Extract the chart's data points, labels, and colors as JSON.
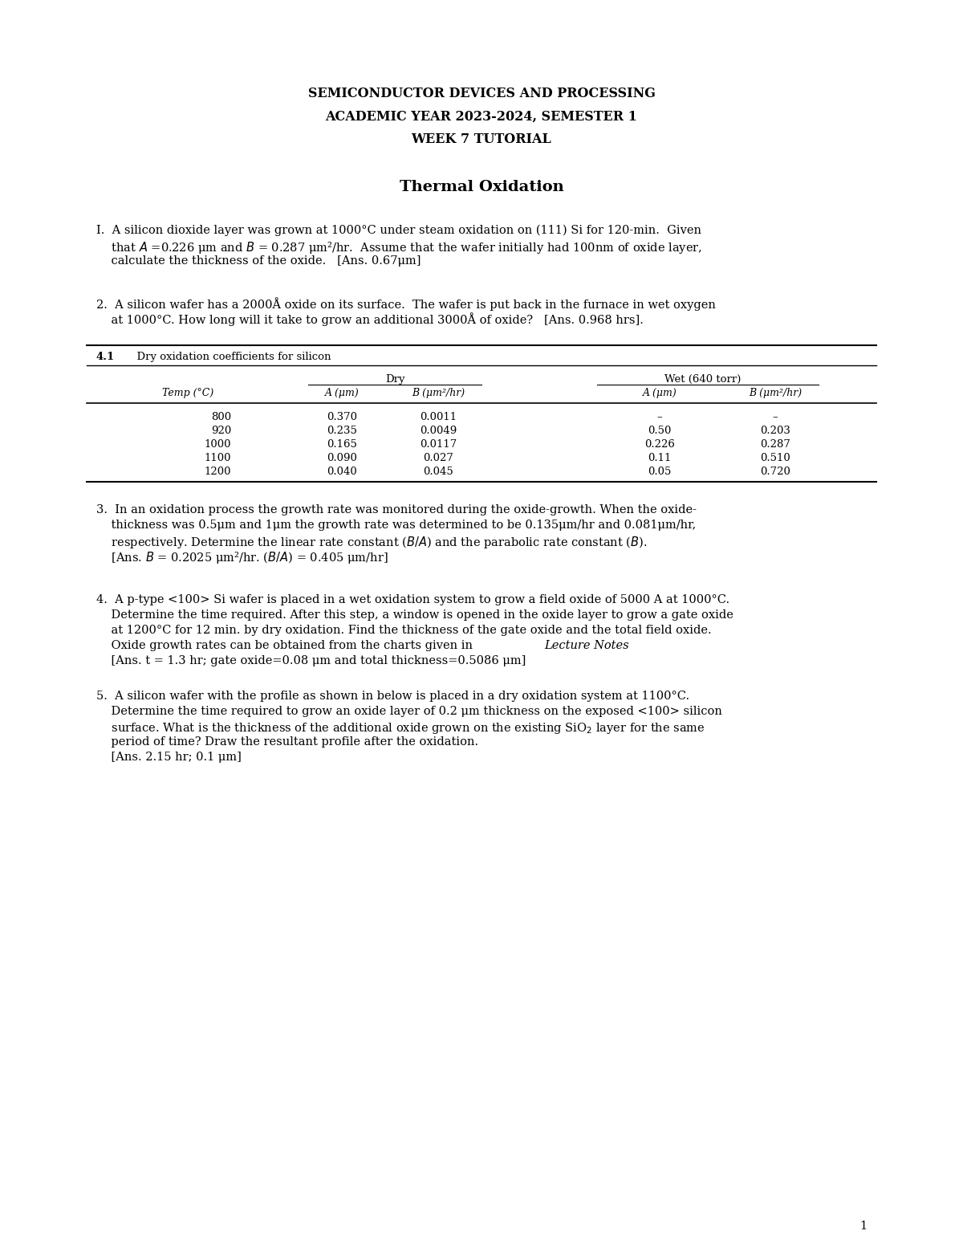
{
  "bg_color": "#ffffff",
  "header_line1": "SEMICONDUCTOR DEVICES AND PROCESSING",
  "header_line2": "ACADEMIC YEAR 2023-2024, SEMESTER 1",
  "header_line3": "WEEK 7 TUTORIAL",
  "section_title": "Thermal Oxidation",
  "table_title_bold": "4.1",
  "table_title_normal": "  Dry oxidation coefficients for silicon",
  "table_col_headers": [
    "Temp (°C)",
    "A (μm)",
    "B (μm²/hr)",
    "A (μm)",
    "B (μm²/hr)"
  ],
  "table_dry_label": "Dry",
  "table_wet_label": "Wet (640 torr)",
  "table_rows": [
    [
      "800",
      "0.370",
      "0.0011",
      "–",
      "–"
    ],
    [
      "920",
      "0.235",
      "0.0049",
      "0.50",
      "0.203"
    ],
    [
      "1000",
      "0.165",
      "0.0117",
      "0.226",
      "0.287"
    ],
    [
      "1100",
      "0.090",
      "0.027",
      "0.11",
      "0.510"
    ],
    [
      "1200",
      "0.040",
      "0.045",
      "0.05",
      "0.720"
    ]
  ],
  "page_number": "1",
  "font_size_header": 11.5,
  "font_size_section": 14,
  "font_size_body": 10.5,
  "font_size_table": 9.5
}
